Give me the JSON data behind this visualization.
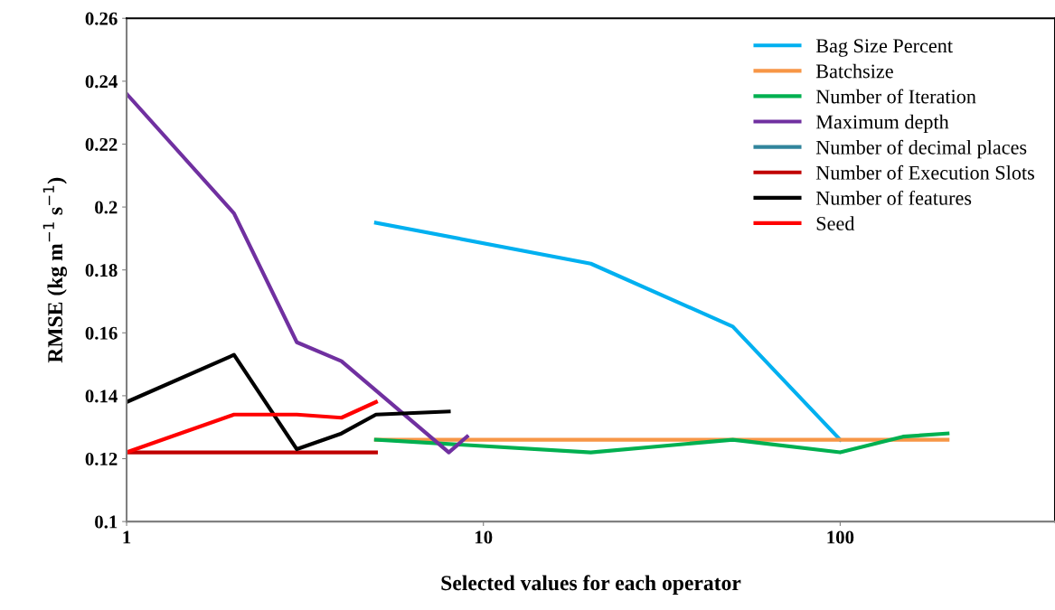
{
  "chart_data": {
    "type": "line",
    "xlabel": "Selected values for each operator",
    "ylabel": "RMSE (kg m$^{−1}$ s$^{−1}$)",
    "log": "x",
    "xlim": [
      1,
      400
    ],
    "xticks": [
      1,
      10,
      100
    ],
    "ylim": [
      0.1,
      0.26
    ],
    "yticks": [
      0.1,
      0.12,
      0.14,
      0.16,
      0.18,
      0.2,
      0.22,
      0.24,
      0.26
    ],
    "grid": false,
    "legend": "top right",
    "marker": "none",
    "line_style": "solid",
    "series": [
      {
        "name": "Bag Size Percent",
        "color": "#00b0f0",
        "x": [
          5,
          20,
          50,
          100
        ],
        "values": [
          0.195,
          0.182,
          0.162,
          0.126
        ]
      },
      {
        "name": "Batchsize",
        "color": "#f79646",
        "x": [
          5,
          200
        ],
        "values": [
          0.126,
          0.126
        ]
      },
      {
        "name": "Number of Iteration",
        "color": "#00b050",
        "x": [
          5,
          20,
          50,
          100,
          150,
          200
        ],
        "values": [
          0.126,
          0.122,
          0.126,
          0.122,
          0.127,
          0.128
        ]
      },
      {
        "name": "Maximum depth",
        "color": "#7030a0",
        "x": [
          1,
          2,
          3,
          4,
          8,
          9
        ],
        "values": [
          0.236,
          0.198,
          0.157,
          0.151,
          0.122,
          0.127
        ]
      },
      {
        "name": "Number of decimal places",
        "color": "#31859c"
      },
      {
        "name": "Number of Execution Slots",
        "color": "#c00000",
        "x": [
          1,
          5
        ],
        "values": [
          0.122,
          0.122
        ]
      },
      {
        "name": "Number of features",
        "color": "#000000",
        "x": [
          1,
          2,
          3,
          4,
          5,
          8
        ],
        "values": [
          0.138,
          0.153,
          0.123,
          0.128,
          0.134,
          0.135
        ]
      },
      {
        "name": "Seed",
        "color": "#ff0000",
        "x": [
          1,
          2,
          3,
          4,
          5
        ],
        "values": [
          0.122,
          0.134,
          0.134,
          0.133,
          0.138
        ]
      }
    ]
  }
}
